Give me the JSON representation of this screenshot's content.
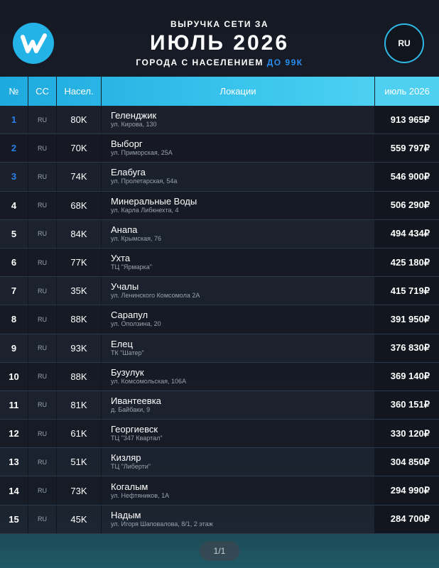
{
  "header": {
    "line1": "ВЫРУЧКА СЕТИ ЗА",
    "title": "ИЮЛЬ 2026",
    "subtitle": "ГОРОДА С НАСЕЛЕНИЕМ",
    "subtitle_highlight": "ДО 99К",
    "badge": "RU"
  },
  "table": {
    "columns": [
      "№",
      "CC",
      "Насел.",
      "Локации",
      "июль 2026"
    ],
    "rows": [
      {
        "rank": 1,
        "cc": "RU",
        "population": "80K",
        "city": "Геленджик",
        "address": "ул. Кирова, 130",
        "revenue": "913 965₽"
      },
      {
        "rank": 2,
        "cc": "RU",
        "population": "70K",
        "city": "Выборг",
        "address": "ул. Приморская, 25А",
        "revenue": "559 797₽"
      },
      {
        "rank": 3,
        "cc": "RU",
        "population": "74K",
        "city": "Елабуга",
        "address": "ул. Пролетарская, 54а",
        "revenue": "546 900₽"
      },
      {
        "rank": 4,
        "cc": "RU",
        "population": "68K",
        "city": "Минеральные Воды",
        "address": "ул. Карла Либкнехта, 4",
        "revenue": "506 290₽"
      },
      {
        "rank": 5,
        "cc": "RU",
        "population": "84K",
        "city": "Анапа",
        "address": "ул. Крымская, 76",
        "revenue": "494 434₽"
      },
      {
        "rank": 6,
        "cc": "RU",
        "population": "77K",
        "city": "Ухта",
        "address": "ТЦ \"Ярмарка\"",
        "revenue": "425 180₽"
      },
      {
        "rank": 7,
        "cc": "RU",
        "population": "35K",
        "city": "Учалы",
        "address": "ул. Ленинского Комсомола 2А",
        "revenue": "415 719₽"
      },
      {
        "rank": 8,
        "cc": "RU",
        "population": "88K",
        "city": "Сарапул",
        "address": "ул. Оползина, 20",
        "revenue": "391 950₽"
      },
      {
        "rank": 9,
        "cc": "RU",
        "population": "93K",
        "city": "Елец",
        "address": "ТК \"Шатер\"",
        "revenue": "376 830₽"
      },
      {
        "rank": 10,
        "cc": "RU",
        "population": "88K",
        "city": "Бузулук",
        "address": "ул. Комсомольская, 106А",
        "revenue": "369 140₽"
      },
      {
        "rank": 11,
        "cc": "RU",
        "population": "81K",
        "city": "Ивантеевка",
        "address": "д. Байбаки, 9",
        "revenue": "360 151₽"
      },
      {
        "rank": 12,
        "cc": "RU",
        "population": "61K",
        "city": "Георгиевск",
        "address": "ТЦ \"347 Квартал\"",
        "revenue": "330 120₽"
      },
      {
        "rank": 13,
        "cc": "RU",
        "population": "51K",
        "city": "Кизляр",
        "address": "ТЦ \"Либерти\"",
        "revenue": "304 850₽"
      },
      {
        "rank": 14,
        "cc": "RU",
        "population": "73K",
        "city": "Когалым",
        "address": "ул. Нефтяников, 1А",
        "revenue": "294 990₽"
      },
      {
        "rank": 15,
        "cc": "RU",
        "population": "45K",
        "city": "Надым",
        "address": "ул. Игоря Шаповалова, 8/1, 2 этаж",
        "revenue": "284 700₽"
      }
    ]
  },
  "pagination": "1/1"
}
